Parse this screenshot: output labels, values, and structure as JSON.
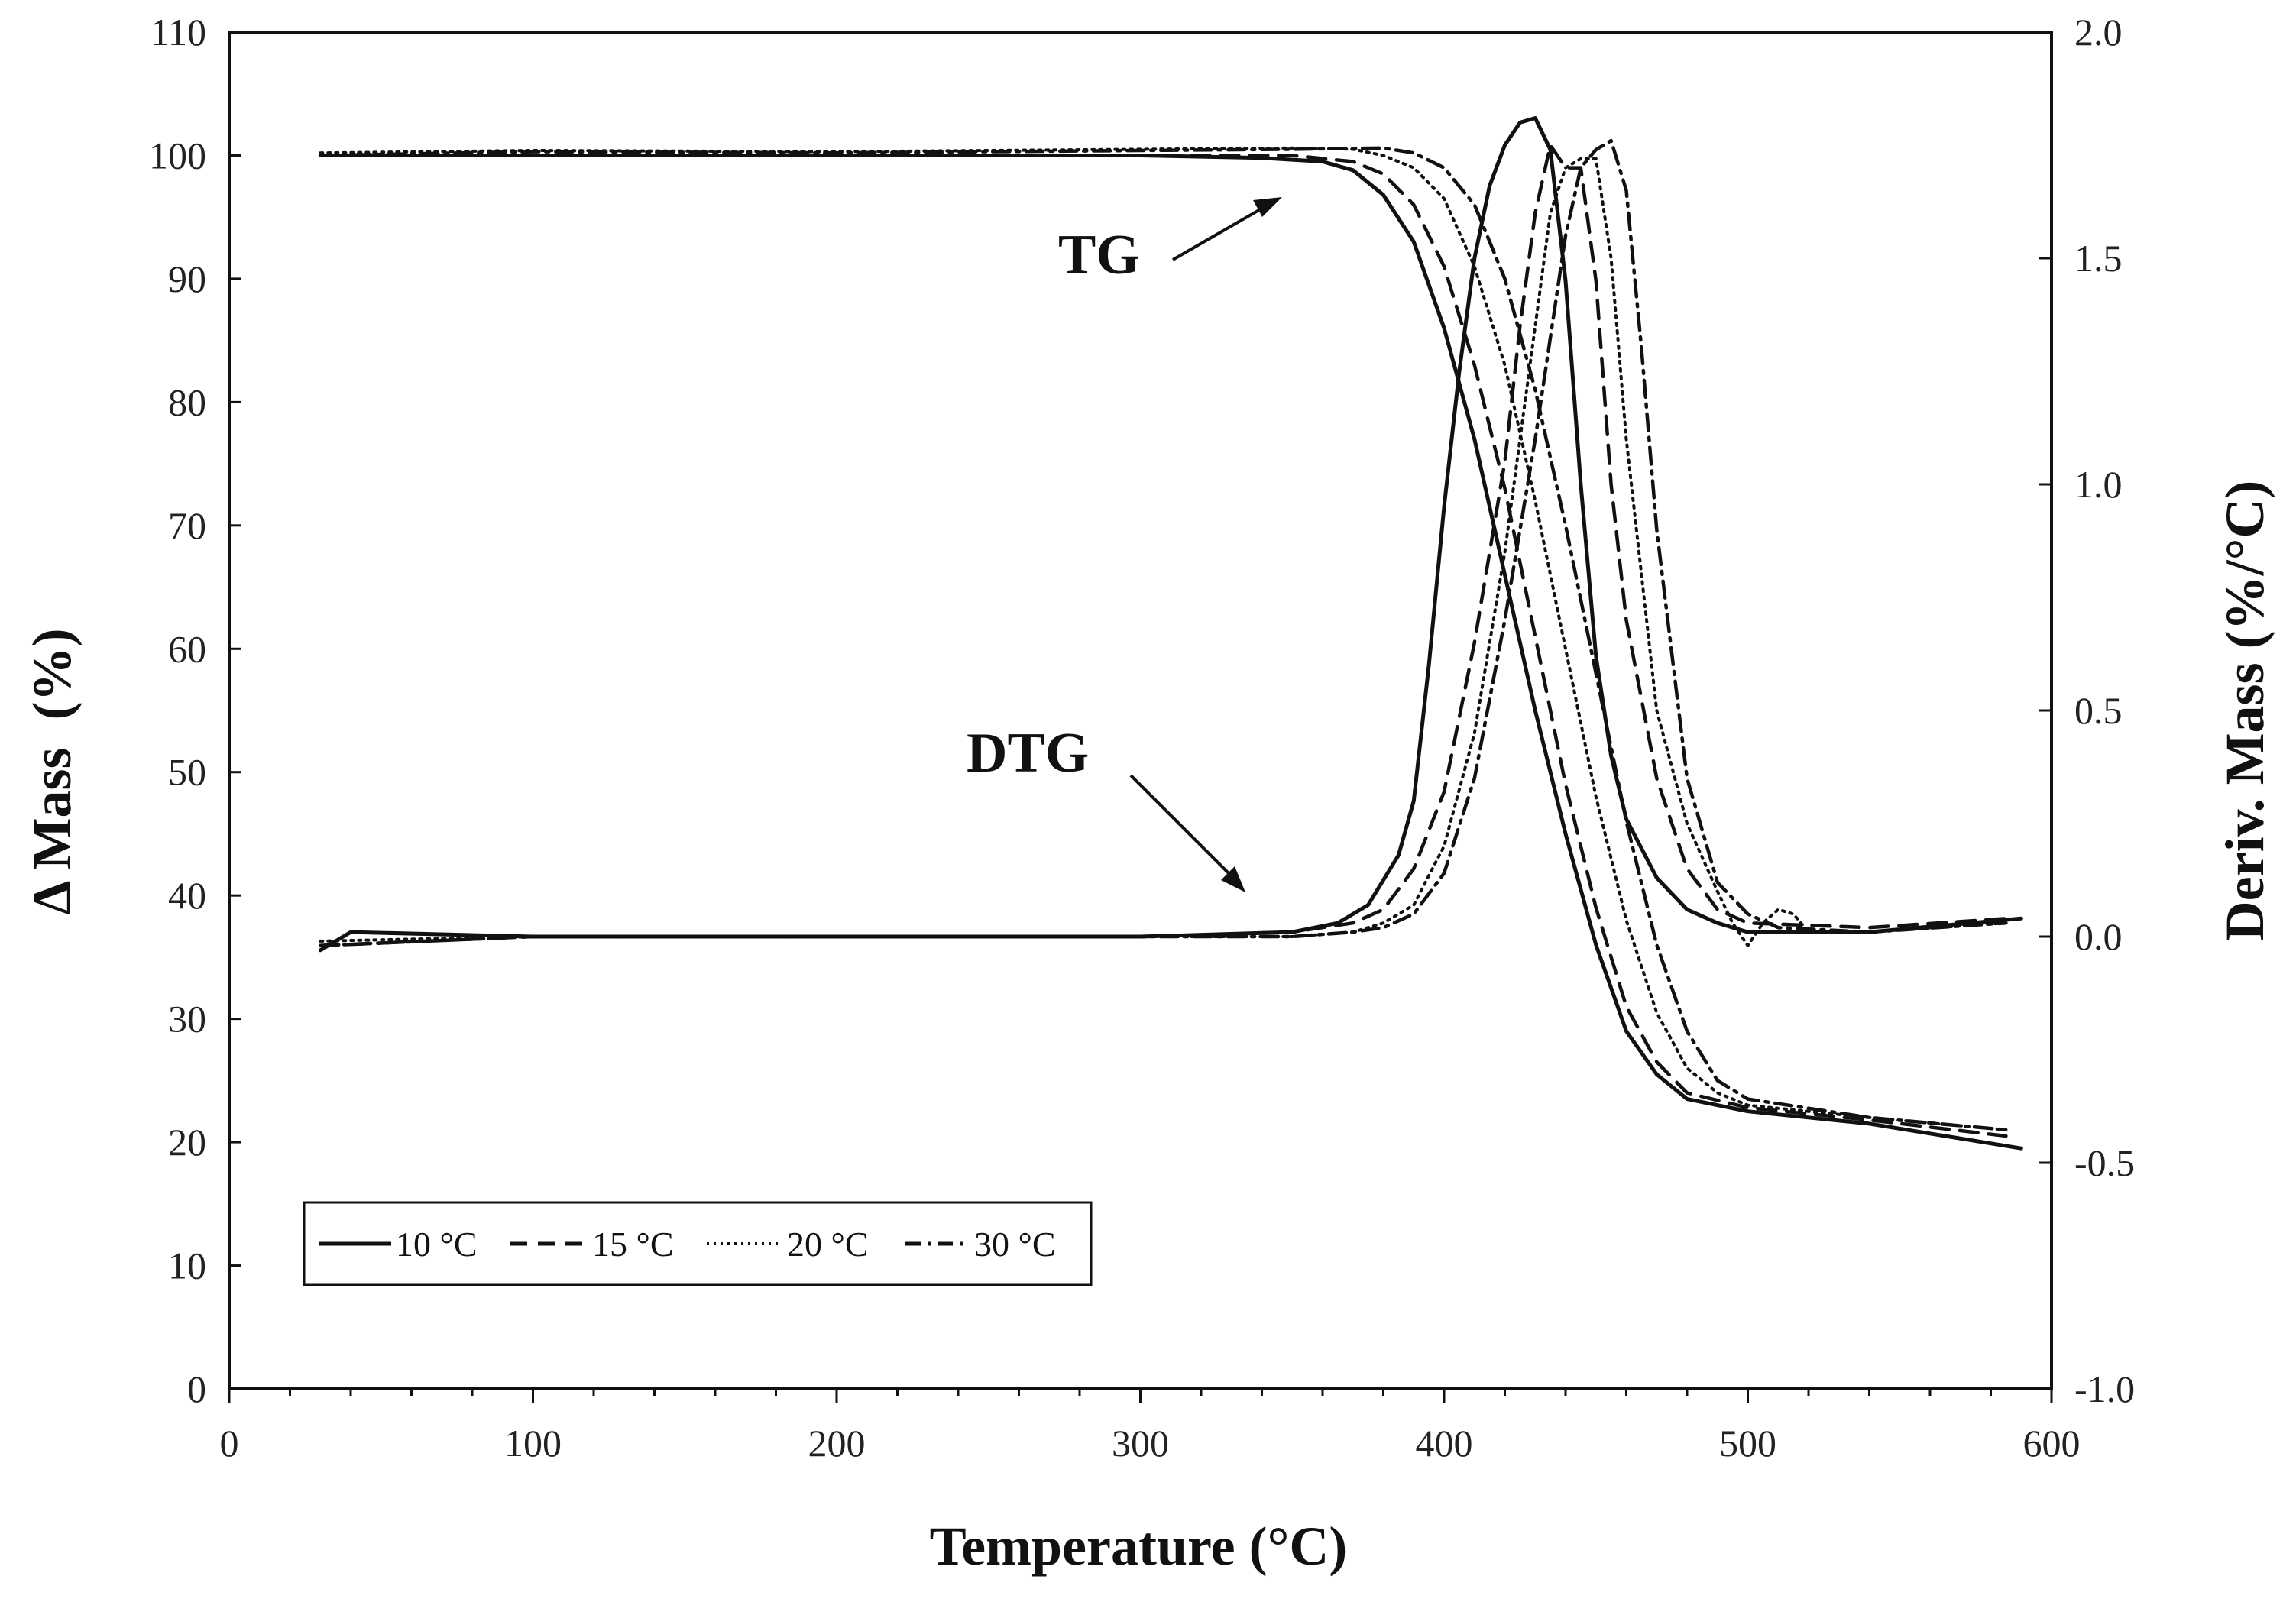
{
  "chart_data": {
    "type": "line",
    "title": "",
    "xlabel": "Temperature (°C)",
    "ylabel_left": "Δ Mass  (%)",
    "ylabel_right": "Deriv. Mass (%/°C)",
    "xlim": [
      0,
      600
    ],
    "ylim_left": [
      0,
      110
    ],
    "ylim_right": [
      -1.0,
      2.0
    ],
    "x_ticks": [
      0,
      100,
      200,
      300,
      400,
      500,
      600
    ],
    "y_left_ticks": [
      0,
      10,
      20,
      30,
      40,
      50,
      60,
      70,
      80,
      90,
      100,
      110
    ],
    "y_right_ticks": [
      "-1.0",
      "-0.5",
      "0.0",
      "0.5",
      "1.0",
      "1.5",
      "2.0"
    ],
    "grid": false,
    "legend_position": "bottom-left",
    "annotations": [
      {
        "text": "TG",
        "x": 340,
        "y": 97
      },
      {
        "text": "DTG",
        "x": 335,
        "y": 40
      }
    ],
    "series": [
      {
        "name": "10 °C",
        "group": "TG",
        "axis": "left",
        "style": "solid",
        "x": [
          30,
          100,
          200,
          300,
          340,
          360,
          370,
          380,
          390,
          400,
          410,
          420,
          430,
          440,
          450,
          460,
          470,
          480,
          500,
          540,
          590
        ],
        "y": [
          100,
          100,
          100,
          100,
          99.8,
          99.5,
          98.8,
          96.8,
          93,
          86,
          77,
          66,
          55,
          45,
          36,
          29,
          25.5,
          23.5,
          22.5,
          21.5,
          19.5
        ]
      },
      {
        "name": "15 °C",
        "group": "TG",
        "axis": "left",
        "style": "dashed",
        "x": [
          30,
          100,
          200,
          300,
          350,
          370,
          380,
          390,
          400,
          410,
          420,
          430,
          440,
          450,
          460,
          470,
          480,
          500,
          540,
          585
        ],
        "y": [
          100,
          100,
          100,
          100,
          100,
          99.5,
          98.5,
          96,
          91,
          83,
          73,
          61,
          49,
          39,
          31,
          26.5,
          24,
          22.8,
          21.8,
          20.5
        ]
      },
      {
        "name": "20 °C",
        "group": "TG",
        "axis": "left",
        "style": "dotted",
        "x": [
          30,
          100,
          200,
          300,
          350,
          370,
          380,
          390,
          400,
          410,
          420,
          430,
          440,
          450,
          460,
          470,
          480,
          490,
          500,
          540,
          585
        ],
        "y": [
          100.2,
          100.4,
          100.3,
          100.5,
          100.6,
          100.5,
          100,
          99,
          96.5,
          91,
          83,
          72,
          60,
          48,
          38,
          30.5,
          26,
          24,
          23,
          22,
          21
        ]
      },
      {
        "name": "30 °C",
        "group": "TG",
        "axis": "left",
        "style": "dashdot",
        "x": [
          30,
          100,
          200,
          300,
          350,
          380,
          390,
          400,
          410,
          420,
          430,
          440,
          450,
          460,
          470,
          480,
          490,
          500,
          540,
          585
        ],
        "y": [
          100,
          100.3,
          100.2,
          100.4,
          100.5,
          100.6,
          100.2,
          99,
          96,
          90,
          81,
          70,
          58,
          46,
          36,
          29,
          25,
          23.5,
          22,
          21
        ]
      },
      {
        "name": "10 °C",
        "group": "DTG",
        "axis": "right",
        "style": "solid",
        "x": [
          30,
          40,
          100,
          200,
          300,
          350,
          365,
          375,
          385,
          390,
          395,
          400,
          405,
          410,
          415,
          420,
          425,
          430,
          435,
          440,
          445,
          450,
          455,
          460,
          470,
          480,
          490,
          500,
          540,
          590
        ],
        "y": [
          -0.03,
          0.01,
          0.0,
          0.0,
          0.0,
          0.01,
          0.03,
          0.07,
          0.18,
          0.3,
          0.6,
          0.95,
          1.25,
          1.5,
          1.66,
          1.75,
          1.8,
          1.81,
          1.74,
          1.45,
          1.0,
          0.62,
          0.4,
          0.26,
          0.13,
          0.06,
          0.03,
          0.01,
          0.01,
          0.04
        ]
      },
      {
        "name": "15 °C",
        "group": "DTG",
        "axis": "right",
        "style": "dashed",
        "x": [
          30,
          100,
          200,
          300,
          350,
          370,
          380,
          390,
          400,
          410,
          420,
          425,
          430,
          435,
          440,
          445,
          450,
          455,
          460,
          470,
          480,
          490,
          500,
          540,
          585
        ],
        "y": [
          -0.02,
          0.0,
          0.0,
          0.0,
          0.01,
          0.03,
          0.06,
          0.15,
          0.32,
          0.65,
          1.05,
          1.35,
          1.6,
          1.75,
          1.7,
          1.7,
          1.45,
          1.0,
          0.7,
          0.35,
          0.15,
          0.06,
          0.03,
          0.02,
          0.04
        ]
      },
      {
        "name": "20 °C",
        "group": "DTG",
        "axis": "right",
        "style": "dotted",
        "x": [
          30,
          100,
          200,
          300,
          350,
          370,
          380,
          390,
          400,
          410,
          420,
          430,
          435,
          440,
          445,
          450,
          455,
          460,
          470,
          480,
          490,
          495,
          500,
          505,
          510,
          515,
          520,
          540,
          585
        ],
        "y": [
          -0.01,
          0.0,
          0.0,
          0.0,
          0.0,
          0.01,
          0.03,
          0.07,
          0.2,
          0.45,
          0.85,
          1.35,
          1.6,
          1.7,
          1.72,
          1.72,
          1.5,
          1.1,
          0.5,
          0.25,
          0.1,
          0.03,
          -0.02,
          0.03,
          0.06,
          0.05,
          0.01,
          0.01,
          0.03
        ]
      },
      {
        "name": "30 °C",
        "group": "DTG",
        "axis": "right",
        "style": "dashdot",
        "x": [
          30,
          100,
          200,
          300,
          350,
          370,
          380,
          390,
          400,
          410,
          420,
          430,
          440,
          445,
          450,
          455,
          460,
          465,
          470,
          480,
          490,
          500,
          510,
          540,
          585
        ],
        "y": [
          -0.02,
          0.0,
          0.0,
          0.0,
          0.0,
          0.01,
          0.02,
          0.05,
          0.14,
          0.35,
          0.7,
          1.1,
          1.55,
          1.7,
          1.74,
          1.76,
          1.65,
          1.3,
          0.9,
          0.35,
          0.12,
          0.05,
          0.02,
          0.01,
          0.03
        ]
      }
    ]
  }
}
